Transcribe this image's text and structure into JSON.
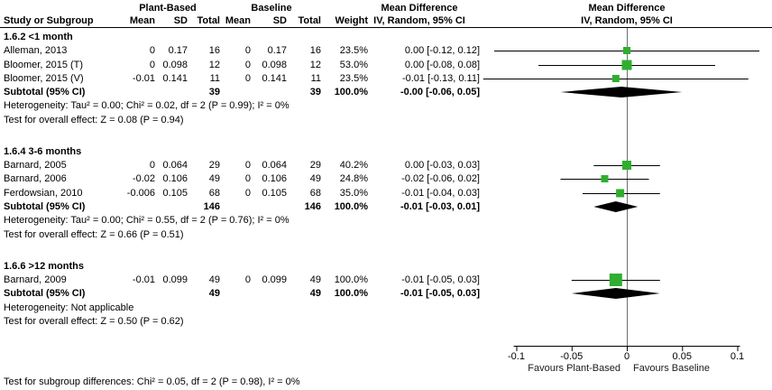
{
  "headers": {
    "plant_based": "Plant-Based",
    "baseline": "Baseline",
    "md_left_title": "Mean Difference",
    "md_right_title": "Mean Difference",
    "md_right_sub": "IV, Random, 95% CI"
  },
  "columns": [
    "Study or Subgroup",
    "Mean",
    "SD",
    "Total",
    "Mean",
    "SD",
    "Total",
    "Weight",
    "IV, Random, 95% CI"
  ],
  "chart_data": {
    "type": "forest",
    "effect_measure": "Mean Difference, IV, Random, 95% CI",
    "x_axis": {
      "ticks": [
        -0.1,
        -0.05,
        0,
        0.05,
        0.1
      ],
      "tick_labels": [
        "-0.1",
        "-0.05",
        "0",
        "0.05",
        "0.1"
      ],
      "xlim": [
        -0.1,
        0.1
      ],
      "favours_left": "Favours Plant-Based",
      "favours_right": "Favours Baseline"
    },
    "groups": [
      {
        "name": "1.6.2 <1 month",
        "studies": [
          {
            "label": "Alleman, 2013",
            "mean1": "0",
            "sd1": "0.17",
            "total1": "16",
            "mean2": "0",
            "sd2": "0.17",
            "total2": "16",
            "weight": "23.5%",
            "ci_text": "0.00 [-0.12, 0.12]",
            "md": 0.0,
            "lo": -0.12,
            "hi": 0.12,
            "weight_pct": 23.5
          },
          {
            "label": "Bloomer, 2015 (T)",
            "mean1": "0",
            "sd1": "0.098",
            "total1": "12",
            "mean2": "0",
            "sd2": "0.098",
            "total2": "12",
            "weight": "53.0%",
            "ci_text": "0.00 [-0.08, 0.08]",
            "md": 0.0,
            "lo": -0.08,
            "hi": 0.08,
            "weight_pct": 53.0
          },
          {
            "label": "Bloomer, 2015 (V)",
            "mean1": "-0.01",
            "sd1": "0.141",
            "total1": "11",
            "mean2": "0",
            "sd2": "0.141",
            "total2": "11",
            "weight": "23.5%",
            "ci_text": "-0.01 [-0.13, 0.11]",
            "md": -0.01,
            "lo": -0.13,
            "hi": 0.11,
            "weight_pct": 23.5
          }
        ],
        "subtotal": {
          "label": "Subtotal (95% CI)",
          "total1": "39",
          "total2": "39",
          "weight": "100.0%",
          "ci_text": "-0.00 [-0.06, 0.05]",
          "md": -0.005,
          "lo": -0.06,
          "hi": 0.05
        },
        "heterogeneity": "Heterogeneity: Tau² = 0.00; Chi² = 0.02, df = 2 (P = 0.99); I² = 0%",
        "overall_effect": "Test for overall effect: Z = 0.08 (P = 0.94)"
      },
      {
        "name": "1.6.4 3-6 months",
        "studies": [
          {
            "label": "Barnard, 2005",
            "mean1": "0",
            "sd1": "0.064",
            "total1": "29",
            "mean2": "0",
            "sd2": "0.064",
            "total2": "29",
            "weight": "40.2%",
            "ci_text": "0.00 [-0.03, 0.03]",
            "md": 0.0,
            "lo": -0.03,
            "hi": 0.03,
            "weight_pct": 40.2
          },
          {
            "label": "Barnard, 2006",
            "mean1": "-0.02",
            "sd1": "0.106",
            "total1": "49",
            "mean2": "0",
            "sd2": "0.106",
            "total2": "49",
            "weight": "24.8%",
            "ci_text": "-0.02 [-0.06, 0.02]",
            "md": -0.02,
            "lo": -0.06,
            "hi": 0.02,
            "weight_pct": 24.8
          },
          {
            "label": "Ferdowsian, 2010",
            "mean1": "-0.006",
            "sd1": "0.105",
            "total1": "68",
            "mean2": "0",
            "sd2": "0.105",
            "total2": "68",
            "weight": "35.0%",
            "ci_text": "-0.01 [-0.04, 0.03]",
            "md": -0.006,
            "lo": -0.04,
            "hi": 0.03,
            "weight_pct": 35.0
          }
        ],
        "subtotal": {
          "label": "Subtotal (95% CI)",
          "total1": "146",
          "total2": "146",
          "weight": "100.0%",
          "ci_text": "-0.01 [-0.03, 0.01]",
          "md": -0.01,
          "lo": -0.03,
          "hi": 0.01
        },
        "heterogeneity": "Heterogeneity: Tau² = 0.00; Chi² = 0.55, df = 2 (P = 0.76); I² = 0%",
        "overall_effect": "Test for overall effect: Z = 0.66 (P = 0.51)"
      },
      {
        "name": "1.6.6 >12 months",
        "studies": [
          {
            "label": "Barnard, 2009",
            "mean1": "-0.01",
            "sd1": "0.099",
            "total1": "49",
            "mean2": "0",
            "sd2": "0.099",
            "total2": "49",
            "weight": "100.0%",
            "ci_text": "-0.01 [-0.05, 0.03]",
            "md": -0.01,
            "lo": -0.05,
            "hi": 0.03,
            "weight_pct": 100.0
          }
        ],
        "subtotal": {
          "label": "Subtotal (95% CI)",
          "total1": "49",
          "total2": "49",
          "weight": "100.0%",
          "ci_text": "-0.01 [-0.05, 0.03]",
          "md": -0.01,
          "lo": -0.05,
          "hi": 0.03
        },
        "heterogeneity": "Heterogeneity: Not applicable",
        "overall_effect": "Test for overall effect: Z = 0.50 (P = 0.62)"
      }
    ],
    "footer": "Test for subgroup differences: Chi² = 0.05, df = 2 (P = 0.98), I² = 0%"
  },
  "colors": {
    "square": "#2fae2f",
    "diamond": "#000000",
    "line": "#000000",
    "zero_line": "#6f6f6f"
  }
}
